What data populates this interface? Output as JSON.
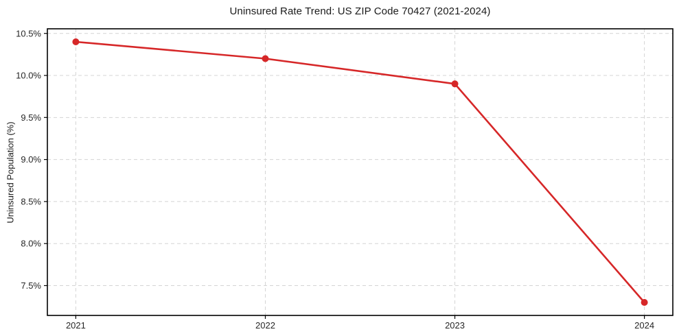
{
  "chart_data": {
    "type": "line",
    "title": "Uninsured Rate Trend: US ZIP Code 70427 (2021-2024)",
    "xlabel": "",
    "ylabel": "Uninsured Population (%)",
    "x": [
      2021,
      2022,
      2023,
      2024
    ],
    "xtick_labels": [
      "2021",
      "2022",
      "2023",
      "2024"
    ],
    "values": [
      10.4,
      10.2,
      9.9,
      7.3
    ],
    "yticks": [
      7.5,
      8.0,
      8.5,
      9.0,
      9.5,
      10.0,
      10.5
    ],
    "ytick_labels": [
      "7.5%",
      "8.0%",
      "8.5%",
      "9.0%",
      "9.5%",
      "10.0%",
      "10.5%"
    ],
    "xlim": [
      2020.85,
      2024.15
    ],
    "ylim": [
      7.145,
      10.555
    ],
    "grid": true,
    "grid_style": "dashed",
    "legend": false,
    "colors": {
      "line": "#d62728",
      "marker": "#d62728",
      "grid": "#d4d4d4",
      "spine": "#000000",
      "tick_text": "#262626",
      "background": "#ffffff"
    }
  }
}
